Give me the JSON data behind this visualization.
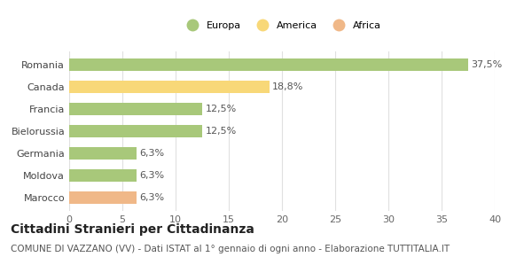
{
  "categories": [
    "Marocco",
    "Moldova",
    "Germania",
    "Bielorussia",
    "Francia",
    "Canada",
    "Romania"
  ],
  "values": [
    6.3,
    6.3,
    6.3,
    12.5,
    12.5,
    18.8,
    37.5
  ],
  "labels": [
    "6,3%",
    "6,3%",
    "6,3%",
    "12,5%",
    "12,5%",
    "18,8%",
    "37,5%"
  ],
  "colors": [
    "#f0b888",
    "#a8c87a",
    "#a8c87a",
    "#a8c87a",
    "#a8c87a",
    "#f8d878",
    "#a8c87a"
  ],
  "legend": [
    {
      "label": "Europa",
      "color": "#a8c87a"
    },
    {
      "label": "America",
      "color": "#f8d878"
    },
    {
      "label": "Africa",
      "color": "#f0b888"
    }
  ],
  "xlim": [
    0,
    40
  ],
  "xticks": [
    0,
    5,
    10,
    15,
    20,
    25,
    30,
    35,
    40
  ],
  "title": "Cittadini Stranieri per Cittadinanza",
  "subtitle": "COMUNE DI VAZZANO (VV) - Dati ISTAT al 1° gennaio di ogni anno - Elaborazione TUTTITALIA.IT",
  "background_color": "#ffffff",
  "grid_color": "#e0e0e0",
  "bar_height": 0.55,
  "title_fontsize": 10,
  "subtitle_fontsize": 7.5,
  "label_fontsize": 8,
  "tick_fontsize": 8
}
